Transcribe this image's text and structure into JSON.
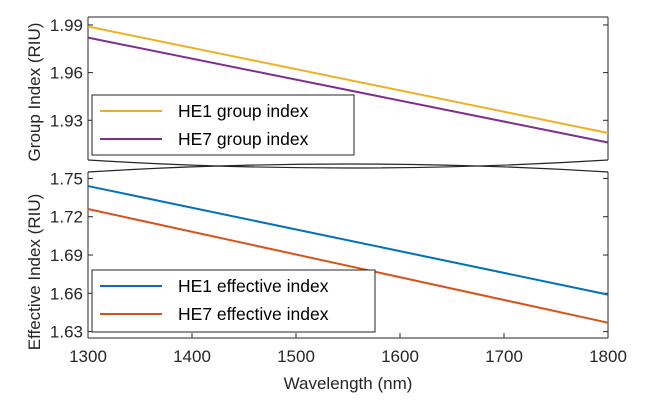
{
  "chart_data": [
    {
      "type": "line",
      "ylabel": "Group Index (RIU)",
      "xlim": [
        1300,
        1800
      ],
      "ylim": [
        1.905,
        1.995
      ],
      "yticks": [
        1.93,
        1.96,
        1.99
      ],
      "grid": false,
      "legend_position": "bottom-left",
      "x": [
        1300,
        1800
      ],
      "series": [
        {
          "name": "HE1 group index",
          "color": "#EDB120",
          "values": [
            1.989,
            1.922
          ]
        },
        {
          "name": "HE7 group index",
          "color": "#7E2F8E",
          "values": [
            1.982,
            1.916
          ]
        }
      ]
    },
    {
      "type": "line",
      "xlabel": "Wavelength (nm)",
      "ylabel": "Effective Index (RIU)",
      "xlim": [
        1300,
        1800
      ],
      "ylim": [
        1.625,
        1.755
      ],
      "xticks": [
        1300,
        1400,
        1500,
        1600,
        1700,
        1800
      ],
      "yticks": [
        1.63,
        1.66,
        1.69,
        1.72,
        1.75
      ],
      "grid": false,
      "legend_position": "bottom-left",
      "x": [
        1300,
        1800
      ],
      "series": [
        {
          "name": "HE1 effective index",
          "color": "#0072BD",
          "values": [
            1.744,
            1.659
          ]
        },
        {
          "name": "HE7 effective index",
          "color": "#D95319",
          "values": [
            1.726,
            1.637
          ]
        }
      ]
    }
  ]
}
